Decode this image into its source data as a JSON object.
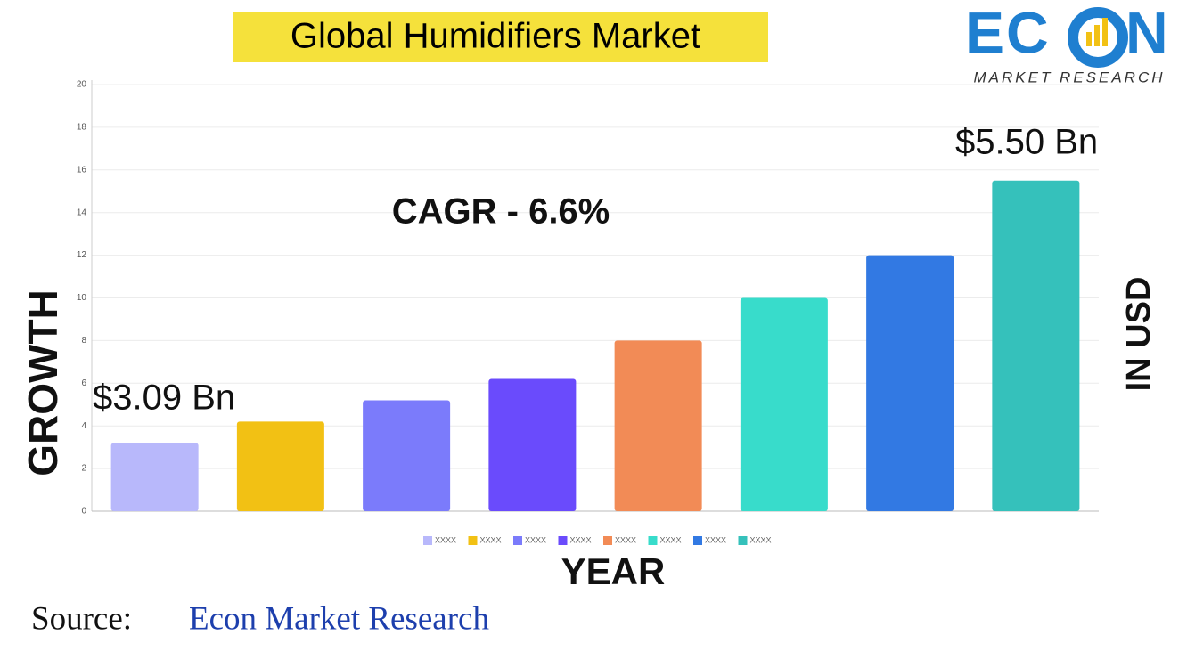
{
  "chart_data": {
    "type": "bar",
    "title": "Global Humidifiers Market",
    "categories": [
      "XXXX",
      "XXXX",
      "XXXX",
      "XXXX",
      "XXXX",
      "XXXX",
      "XXXX",
      "XXXX"
    ],
    "values": [
      3.2,
      4.2,
      5.2,
      6.2,
      8,
      10,
      12,
      15.5
    ],
    "colors": [
      "#b8b8fb",
      "#f2c114",
      "#7b7bfb",
      "#6a4bfc",
      "#f28b56",
      "#38dccb",
      "#3279e3",
      "#35c1bb"
    ],
    "ylim": [
      0,
      20
    ],
    "yticks": [
      0,
      2,
      4,
      6,
      8,
      10,
      12,
      14,
      16,
      18,
      20
    ],
    "grid": true,
    "y_label": "GROWTH",
    "y2_label": "IN USD",
    "x_label": "YEAR",
    "annotations": {
      "start": "$3.09 Bn",
      "end": "$5.50 Bn",
      "cagr": "CAGR - 6.6%"
    },
    "source": {
      "prefix": "Source:",
      "name": "Econ Market Research"
    },
    "logo": {
      "left": "EC",
      "right": "N",
      "tagline": "MARKET RESEARCH"
    }
  }
}
